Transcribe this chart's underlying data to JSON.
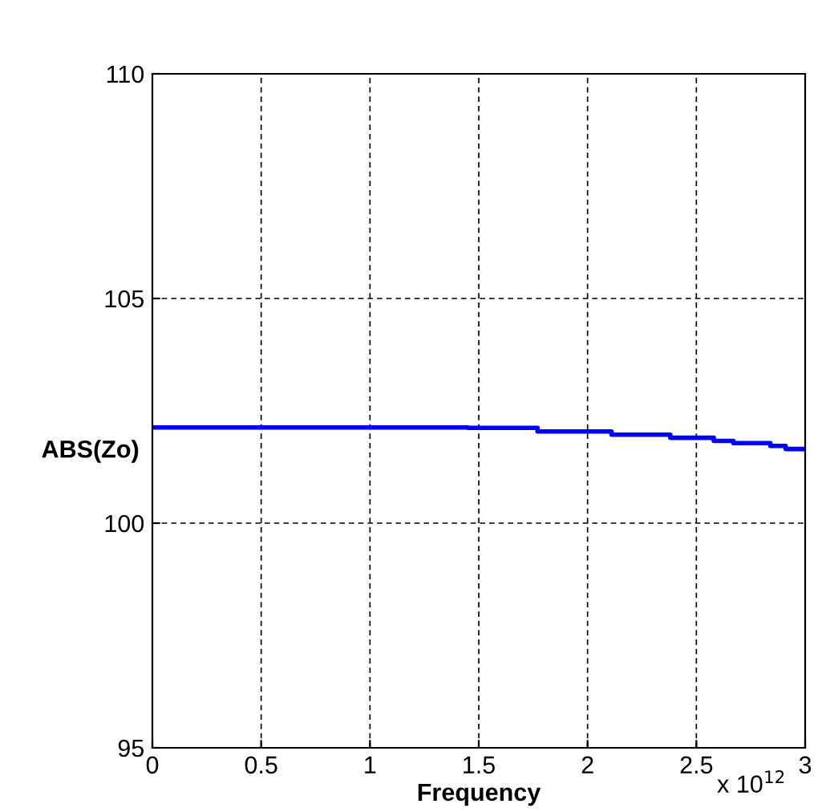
{
  "chart_data": {
    "type": "step",
    "xlabel": "Frequency",
    "ylabel": "ABS(Zo)",
    "annotations": [
      "x 10$^{12}$"
    ],
    "x": [
      0,
      1.45,
      1.77,
      2.11,
      2.38,
      2.58,
      2.67,
      2.84,
      2.91,
      3
    ],
    "series": [
      {
        "color": "#0000ff",
        "values": [
          102.13,
          102.12,
          102.04,
          101.97,
          101.9,
          101.83,
          101.78,
          101.72,
          101.65,
          101.65
        ]
      }
    ],
    "xlim": [
      0,
      3
    ],
    "xticks": [
      0,
      0.5,
      1,
      1.5,
      2,
      2.5,
      3
    ],
    "ylim": [
      95,
      110
    ],
    "yticks": [
      95,
      100,
      105,
      110
    ],
    "grid": true,
    "line_style": "solid",
    "marker": "none",
    "legend": false
  }
}
